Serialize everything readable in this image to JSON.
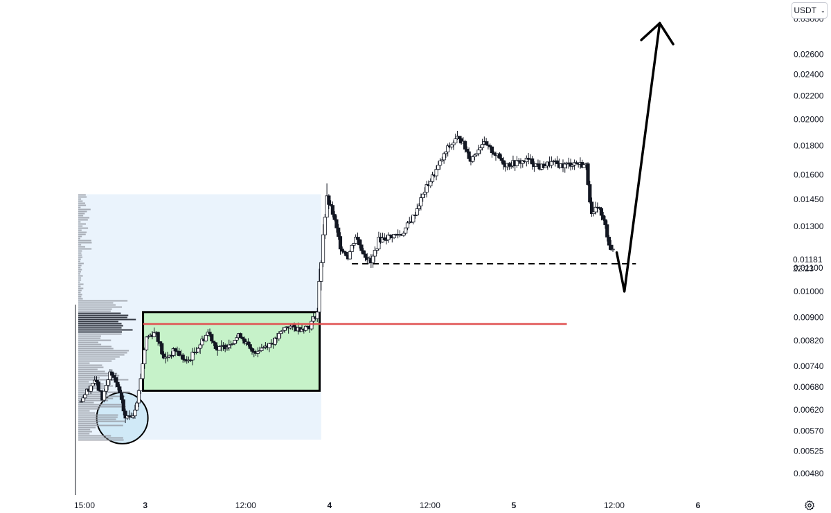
{
  "toolbar": {
    "currency": "USDT"
  },
  "price_label": {
    "price": "0.01181",
    "countdown": "22:23"
  },
  "chart_data": {
    "type": "candlestick",
    "y_scale": "log",
    "ylim": [
      0.0044,
      0.0315
    ],
    "y_ticks": [
      "0.03000",
      "0.02600",
      "0.02400",
      "0.02200",
      "0.02000",
      "0.01800",
      "0.01600",
      "0.01450",
      "0.01300",
      "0.01100",
      "0.01000",
      "0.00900",
      "0.00820",
      "0.00740",
      "0.00680",
      "0.00620",
      "0.00570",
      "0.00525",
      "0.00480"
    ],
    "x_ticks": [
      {
        "label": "15:00",
        "t": 0,
        "bold": false
      },
      {
        "label": "3",
        "t": 9,
        "bold": true
      },
      {
        "label": "12:00",
        "t": 21,
        "bold": false
      },
      {
        "label": "4",
        "t": 33,
        "bold": true
      },
      {
        "label": "12:00",
        "t": 45,
        "bold": false
      },
      {
        "label": "5",
        "t": 57,
        "bold": true
      },
      {
        "label": "12:00",
        "t": 69,
        "bold": false
      },
      {
        "label": "6",
        "t": 81,
        "bold": true
      }
    ],
    "anchors": [
      [
        0.5,
        0.0064
      ],
      [
        2.5,
        0.007
      ],
      [
        3.5,
        0.0065
      ],
      [
        4.5,
        0.0072
      ],
      [
        5.5,
        0.0068
      ],
      [
        6.5,
        0.006
      ],
      [
        7.5,
        0.0061
      ],
      [
        8.2,
        0.0066
      ],
      [
        9.2,
        0.0083
      ],
      [
        10.5,
        0.0085
      ],
      [
        11.5,
        0.0076
      ],
      [
        13,
        0.0079
      ],
      [
        14.5,
        0.0075
      ],
      [
        16,
        0.008
      ],
      [
        17.3,
        0.0085
      ],
      [
        18.5,
        0.0079
      ],
      [
        20,
        0.0081
      ],
      [
        21.5,
        0.0084
      ],
      [
        23,
        0.0078
      ],
      [
        24.5,
        0.008
      ],
      [
        26,
        0.0082
      ],
      [
        27.5,
        0.0087
      ],
      [
        29,
        0.0086
      ],
      [
        30.5,
        0.0087
      ],
      [
        31.5,
        0.0092
      ],
      [
        32.3,
        0.013
      ],
      [
        32.8,
        0.0145
      ],
      [
        33.5,
        0.0137
      ],
      [
        34.5,
        0.012
      ],
      [
        35.5,
        0.0115
      ],
      [
        36.5,
        0.0125
      ],
      [
        37.5,
        0.0117
      ],
      [
        38.5,
        0.0112
      ],
      [
        39.5,
        0.0123
      ],
      [
        41,
        0.0125
      ],
      [
        42.5,
        0.0126
      ],
      [
        44,
        0.0135
      ],
      [
        45.5,
        0.015
      ],
      [
        47,
        0.0163
      ],
      [
        48.5,
        0.0178
      ],
      [
        50,
        0.0187
      ],
      [
        51.5,
        0.017
      ],
      [
        53,
        0.0182
      ],
      [
        54.5,
        0.0175
      ],
      [
        56,
        0.0167
      ],
      [
        57.5,
        0.0168
      ],
      [
        59,
        0.017
      ],
      [
        60.5,
        0.0165
      ],
      [
        62,
        0.0168
      ],
      [
        63.5,
        0.0166
      ],
      [
        65,
        0.0168
      ],
      [
        66.5,
        0.0166
      ],
      [
        67.3,
        0.0134
      ],
      [
        68,
        0.0142
      ],
      [
        69,
        0.013
      ],
      [
        69.6,
        0.012
      ],
      [
        70.2,
        0.0116
      ]
    ],
    "range_box": {
      "t0": 8.8,
      "t1": 31.8,
      "y0": 0.0067,
      "y1": 0.0092,
      "color": "#c6f2c9"
    },
    "volume_profile_zone": {
      "t0": 0,
      "t1": 32,
      "y0": 0.0055,
      "y1": 0.0148,
      "color": "#eaf3fc"
    },
    "red_line": {
      "t0": 8.8,
      "t1": 64,
      "y": 0.00877,
      "color": "#e05252"
    },
    "dashed_support": {
      "t0": 36,
      "t1": 73,
      "y": 0.01118
    },
    "circle": {
      "t": 6.1,
      "y": 0.006
    },
    "projection": [
      [
        70.5,
        0.0117
      ],
      [
        71.5,
        0.01
      ],
      [
        76.1,
        0.0295
      ]
    ],
    "current_price": 0.01181
  }
}
